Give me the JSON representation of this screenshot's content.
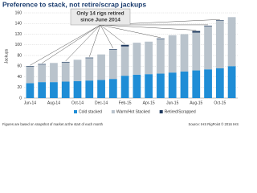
{
  "chart_data": {
    "type": "stacked-bar",
    "title": "Preference to stack, not retire/scrap jackups",
    "y_label": "Jackups",
    "annotation": [
      "Only 14 rigs retired",
      "since June 2014"
    ],
    "footnote": "Figures are based on snapshot of market at the start of each month",
    "source": "Source: IHS RigPoint © 2016 IHS",
    "categories": [
      "Jun-14",
      null,
      "Aug-14",
      null,
      "Oct-14",
      null,
      "Dec-14",
      null,
      "Feb-15",
      null,
      "Apr-15",
      null,
      "Jun-15",
      null,
      "Aug-15",
      null,
      "Oct-15",
      null
    ],
    "series": [
      {
        "name": "Cold stacked",
        "color": "#1f8dd6",
        "values": [
          28,
          30,
          30,
          31,
          32,
          33,
          34,
          36,
          42,
          44,
          45,
          46,
          48,
          50,
          52,
          54,
          56,
          60
        ]
      },
      {
        "name": "Warm/Hot Stacked",
        "color": "#b9c3cc",
        "values": [
          31,
          33,
          36,
          36,
          40,
          42,
          48,
          55,
          55,
          60,
          61,
          65,
          70,
          70,
          71,
          81,
          89,
          92
        ]
      },
      {
        "name": "Retired/Scrapped",
        "color": "#1f3a5f",
        "values": [
          1,
          1,
          0,
          1,
          0,
          1,
          0,
          1,
          3,
          0,
          0,
          1,
          0,
          0,
          3,
          1,
          1,
          0
        ]
      }
    ],
    "ylim": [
      0,
      160
    ],
    "yticks": [
      0,
      20,
      40,
      60,
      80,
      100,
      120,
      140,
      160
    ],
    "grid": true
  }
}
